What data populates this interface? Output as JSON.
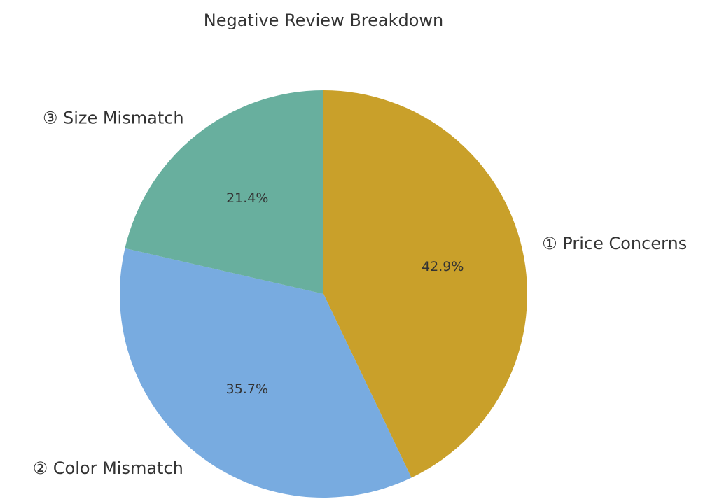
{
  "chart_data": {
    "type": "pie",
    "title": "Negative Review Breakdown",
    "categories": [
      "① Price Concerns",
      "② Color Mismatch",
      "③ Size Mismatch"
    ],
    "values": [
      42.9,
      35.7,
      21.4
    ],
    "value_labels": [
      "42.9%",
      "35.7%",
      "21.4%"
    ],
    "colors": [
      "#c9a02a",
      "#78abe0",
      "#68af9e"
    ]
  }
}
